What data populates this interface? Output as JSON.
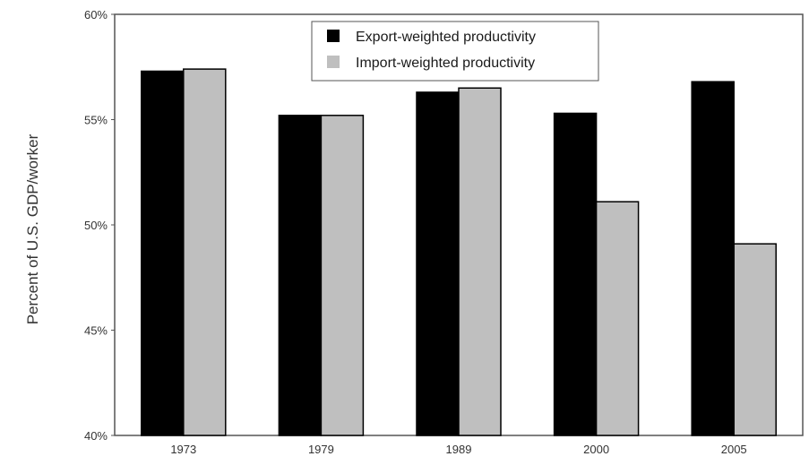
{
  "chart_data": {
    "type": "bar",
    "categories": [
      "1973",
      "1979",
      "1989",
      "2000",
      "2005"
    ],
    "series": [
      {
        "name": "Export-weighted productivity",
        "values": [
          57.3,
          55.2,
          56.3,
          55.3,
          56.8
        ],
        "color": "#000000"
      },
      {
        "name": "Import-weighted productivity",
        "values": [
          57.4,
          55.2,
          56.5,
          51.1,
          49.1
        ],
        "color": "#bfbfbf"
      }
    ],
    "title": "",
    "xlabel": "",
    "ylabel": "Percent of U.S. GDP/worker",
    "ylim": [
      40,
      60
    ],
    "yticks": [
      "40%",
      "45%",
      "50%",
      "55%",
      "60%"
    ],
    "grid": false,
    "legend_position": "top-center"
  }
}
